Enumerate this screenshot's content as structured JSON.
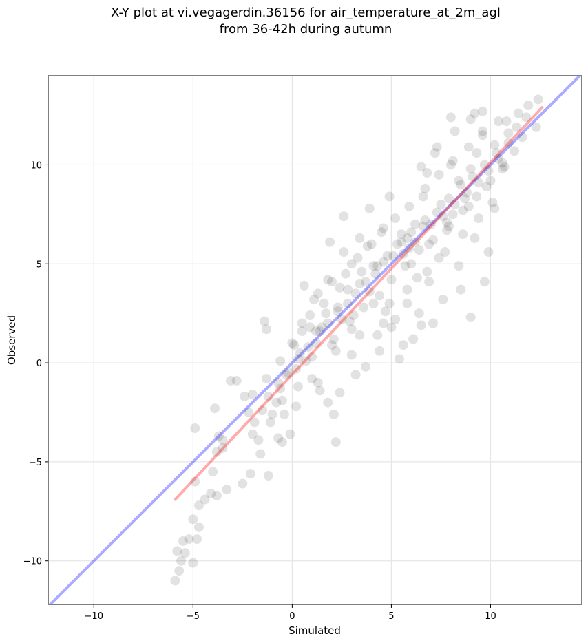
{
  "chart_data": {
    "type": "scatter",
    "title": [
      "X-Y plot at vi.vegagerdin.36156 for air_temperature_at_2m_agl",
      "from 36-42h during autumn"
    ],
    "xlabel": "Simulated",
    "ylabel": "Observed",
    "xlim": [
      -12.3,
      14.6
    ],
    "ylim": [
      -12.2,
      14.5
    ],
    "xticks": [
      -10,
      -5,
      0,
      5,
      10
    ],
    "yticks": [
      -10,
      -5,
      0,
      5,
      10
    ],
    "xtick_labels": [
      "−10",
      "−5",
      "0",
      "5",
      "10"
    ],
    "ytick_labels": [
      "−10",
      "−5",
      "0",
      "5",
      "10"
    ],
    "grid": true,
    "point_color": "#000000",
    "point_alpha": 0.07,
    "series": [
      {
        "points": [
          [
            -5.9,
            -11.0
          ],
          [
            -5.7,
            -10.5
          ],
          [
            -5.6,
            -10.0
          ],
          [
            -5.8,
            -9.5
          ],
          [
            -5.5,
            -9.0
          ],
          [
            -5.2,
            -8.9
          ],
          [
            -5.4,
            -9.6
          ],
          [
            -5.0,
            -10.1
          ],
          [
            -4.8,
            -8.9
          ],
          [
            -4.7,
            -8.3
          ],
          [
            -5.0,
            -7.9
          ],
          [
            -4.7,
            -7.2
          ],
          [
            -4.4,
            -6.9
          ],
          [
            -4.1,
            -6.6
          ],
          [
            -3.8,
            -6.7
          ],
          [
            -3.3,
            -6.4
          ],
          [
            -2.5,
            -6.1
          ],
          [
            -4.0,
            -5.5
          ],
          [
            -2.1,
            -5.6
          ],
          [
            -1.2,
            -5.7
          ],
          [
            -4.9,
            -6.0
          ],
          [
            -4.9,
            -3.3
          ],
          [
            -3.9,
            -2.3
          ],
          [
            -3.5,
            -4.3
          ],
          [
            -3.8,
            -4.5
          ],
          [
            -3.7,
            -3.7
          ],
          [
            -3.1,
            -0.9
          ],
          [
            -2.8,
            -0.9
          ],
          [
            -2.4,
            -1.7
          ],
          [
            -2.0,
            -1.6
          ],
          [
            -1.4,
            2.1
          ],
          [
            -1.3,
            1.7
          ],
          [
            -1.6,
            -4.6
          ],
          [
            -1.7,
            -3.9
          ],
          [
            -0.7,
            -3.8
          ],
          [
            -0.5,
            -4.0
          ],
          [
            -0.1,
            -3.6
          ],
          [
            2.2,
            -4.0
          ],
          [
            -2.0,
            -3.6
          ],
          [
            -1.1,
            -3.0
          ],
          [
            -0.8,
            -2.0
          ],
          [
            -0.6,
            -1.3
          ],
          [
            -0.3,
            -0.6
          ],
          [
            0.2,
            -0.3
          ],
          [
            0.4,
            0.5
          ],
          [
            0.0,
            1.0
          ],
          [
            0.5,
            1.6
          ],
          [
            0.9,
            2.4
          ],
          [
            1.2,
            1.0
          ],
          [
            1.5,
            1.8
          ],
          [
            0.7,
            0.1
          ],
          [
            1.0,
            -0.8
          ],
          [
            1.4,
            -1.4
          ],
          [
            1.8,
            -2.0
          ],
          [
            2.1,
            -2.6
          ],
          [
            2.4,
            -1.5
          ],
          [
            0.6,
            3.9
          ],
          [
            1.1,
            3.2
          ],
          [
            1.8,
            4.2
          ],
          [
            2.3,
            2.8
          ],
          [
            2.8,
            3.7
          ],
          [
            3.1,
            2.4
          ],
          [
            3.5,
            4.6
          ],
          [
            3.9,
            3.6
          ],
          [
            4.3,
            4.9
          ],
          [
            4.0,
            6.0
          ],
          [
            3.4,
            6.3
          ],
          [
            3.9,
            7.8
          ],
          [
            4.6,
            6.8
          ],
          [
            5.1,
            5.4
          ],
          [
            5.5,
            6.5
          ],
          [
            5.9,
            5.8
          ],
          [
            6.2,
            7.0
          ],
          [
            6.6,
            8.4
          ],
          [
            6.3,
            4.3
          ],
          [
            5.8,
            3.0
          ],
          [
            5.2,
            2.2
          ],
          [
            6.4,
            2.5
          ],
          [
            7.1,
            2.0
          ],
          [
            6.9,
            4.1
          ],
          [
            7.4,
            5.3
          ],
          [
            7.8,
            6.7
          ],
          [
            7.5,
            8.0
          ],
          [
            8.1,
            7.5
          ],
          [
            8.4,
            9.2
          ],
          [
            8.0,
            10.0
          ],
          [
            8.7,
            8.3
          ],
          [
            9.0,
            9.8
          ],
          [
            9.3,
            10.6
          ],
          [
            9.6,
            11.5
          ],
          [
            9.2,
            12.6
          ],
          [
            9.6,
            12.7
          ],
          [
            10.2,
            11.0
          ],
          [
            10.6,
            10.1
          ],
          [
            10.9,
            11.6
          ],
          [
            11.4,
            12.6
          ],
          [
            11.9,
            13.0
          ],
          [
            12.4,
            13.3
          ],
          [
            12.3,
            11.9
          ],
          [
            11.6,
            11.4
          ],
          [
            10.8,
            12.2
          ],
          [
            9.0,
            2.3
          ],
          [
            9.9,
            5.6
          ],
          [
            10.2,
            7.8
          ],
          [
            9.7,
            4.1
          ],
          [
            8.5,
            3.7
          ],
          [
            7.6,
            3.2
          ],
          [
            8.4,
            4.9
          ],
          [
            9.2,
            6.3
          ],
          [
            8.0,
            12.4
          ],
          [
            7.2,
            10.6
          ],
          [
            6.8,
            9.6
          ],
          [
            4.9,
            8.4
          ],
          [
            3.3,
            5.3
          ],
          [
            2.6,
            5.6
          ],
          [
            1.9,
            6.1
          ],
          [
            2.6,
            7.4
          ],
          [
            3.7,
            -0.2
          ],
          [
            4.4,
            0.6
          ],
          [
            5.4,
            0.2
          ],
          [
            3.0,
            0.4
          ],
          [
            2.0,
            0.9
          ],
          [
            1.3,
            -1.0
          ],
          [
            0.2,
            -2.2
          ],
          [
            -0.5,
            -1.9
          ],
          [
            3.2,
            -0.6
          ],
          [
            4.3,
            1.4
          ],
          [
            5.0,
            1.8
          ],
          [
            6.1,
            1.2
          ],
          [
            6.5,
            1.9
          ],
          [
            5.6,
            0.9
          ],
          [
            4.7,
            2.6
          ],
          [
            4.1,
            3.0
          ],
          [
            3.0,
            1.7
          ],
          [
            2.5,
            2.2
          ],
          [
            1.7,
            2.5
          ],
          [
            1.2,
            1.6
          ],
          [
            0.8,
            0.8
          ],
          [
            0.3,
            0.2
          ],
          [
            -0.2,
            -0.5
          ],
          [
            -0.7,
            -1.0
          ],
          [
            -1.2,
            -1.7
          ],
          [
            -1.5,
            -2.4
          ],
          [
            -1.0,
            -2.6
          ],
          [
            0.5,
            2.0
          ],
          [
            1.3,
            3.5
          ],
          [
            2.0,
            4.1
          ],
          [
            2.7,
            4.5
          ],
          [
            3.4,
            4.0
          ],
          [
            4.1,
            4.9
          ],
          [
            4.8,
            5.4
          ],
          [
            5.5,
            6.1
          ],
          [
            6.0,
            6.6
          ],
          [
            6.7,
            7.2
          ],
          [
            7.3,
            7.6
          ],
          [
            7.9,
            8.3
          ],
          [
            8.5,
            9.0
          ],
          [
            9.1,
            9.4
          ],
          [
            9.7,
            10.0
          ],
          [
            10.3,
            10.6
          ],
          [
            10.9,
            11.1
          ],
          [
            11.3,
            11.9
          ],
          [
            5.3,
            6.0
          ],
          [
            5.8,
            6.3
          ],
          [
            6.2,
            6.1
          ],
          [
            5.6,
            5.5
          ],
          [
            6.6,
            6.9
          ],
          [
            7.0,
            7.0
          ],
          [
            7.6,
            7.4
          ],
          [
            8.2,
            8.0
          ],
          [
            8.8,
            8.6
          ],
          [
            9.4,
            9.1
          ],
          [
            9.9,
            9.7
          ],
          [
            10.4,
            10.3
          ],
          [
            4.6,
            5.1
          ],
          [
            4.2,
            4.5
          ],
          [
            3.7,
            4.1
          ],
          [
            3.2,
            3.5
          ],
          [
            2.8,
            3.0
          ],
          [
            2.3,
            2.6
          ],
          [
            1.8,
            2.0
          ],
          [
            1.4,
            1.6
          ],
          [
            2.1,
            1.2
          ],
          [
            2.9,
            2.1
          ],
          [
            3.6,
            2.8
          ],
          [
            4.4,
            3.4
          ],
          [
            5.0,
            4.2
          ],
          [
            5.7,
            4.9
          ],
          [
            6.4,
            5.7
          ],
          [
            7.1,
            6.2
          ],
          [
            7.8,
            7.1
          ],
          [
            8.6,
            7.7
          ],
          [
            9.3,
            8.4
          ],
          [
            10.0,
            9.2
          ],
          [
            10.6,
            9.8
          ],
          [
            11.2,
            10.7
          ],
          [
            3.0,
            5.0
          ],
          [
            3.8,
            5.9
          ],
          [
            4.5,
            6.6
          ],
          [
            5.2,
            7.3
          ],
          [
            5.9,
            7.9
          ],
          [
            6.7,
            8.8
          ],
          [
            7.4,
            9.5
          ],
          [
            8.1,
            10.2
          ],
          [
            8.9,
            10.9
          ],
          [
            9.6,
            11.7
          ],
          [
            10.4,
            12.2
          ],
          [
            1.6,
            3.0
          ],
          [
            2.4,
            3.8
          ],
          [
            0.9,
            1.8
          ],
          [
            0.1,
            0.9
          ],
          [
            -0.6,
            0.1
          ],
          [
            -1.3,
            -0.8
          ],
          [
            4.9,
            3.0
          ],
          [
            5.8,
            3.7
          ],
          [
            6.8,
            4.6
          ],
          [
            7.7,
            5.6
          ],
          [
            8.6,
            6.5
          ],
          [
            9.4,
            7.3
          ],
          [
            10.1,
            8.1
          ],
          [
            6.0,
            5.0
          ],
          [
            6.9,
            6.0
          ],
          [
            7.9,
            6.9
          ],
          [
            8.9,
            7.9
          ],
          [
            9.8,
            8.9
          ],
          [
            10.7,
            9.9
          ],
          [
            2.2,
            0.6
          ],
          [
            3.4,
            1.4
          ],
          [
            4.6,
            2.0
          ],
          [
            1.0,
            0.3
          ],
          [
            0.3,
            -1.2
          ],
          [
            -0.4,
            -2.6
          ],
          [
            -1.9,
            -3.0
          ],
          [
            -2.2,
            -2.5
          ],
          [
            -3.5,
            -3.9
          ],
          [
            6.5,
            9.9
          ],
          [
            7.3,
            10.9
          ],
          [
            8.2,
            11.7
          ],
          [
            9.0,
            12.3
          ],
          [
            11.8,
            12.4
          ]
        ]
      }
    ],
    "lines": [
      {
        "name": "",
        "color": "#0000ff",
        "alpha": 0.33,
        "x": [
          -12.3,
          14.6
        ],
        "y": [
          -12.3,
          14.6
        ]
      },
      {
        "name": "",
        "color": "#ff0000",
        "alpha": 0.33,
        "x": [
          -5.9,
          12.6
        ],
        "y": [
          -6.9,
          12.9
        ]
      }
    ]
  }
}
